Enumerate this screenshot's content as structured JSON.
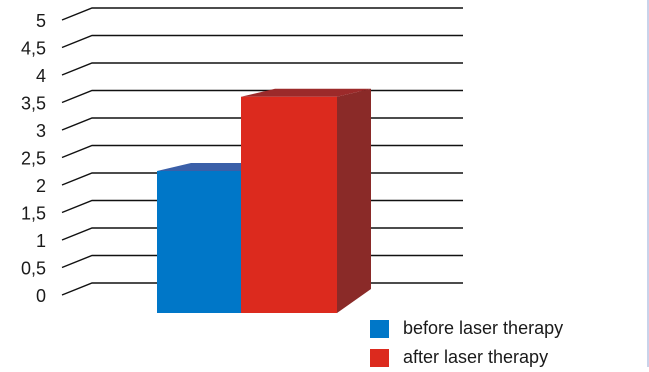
{
  "chart_data": {
    "type": "bar",
    "title": "",
    "xlabel": "",
    "ylabel": "",
    "ylim": [
      0,
      5
    ],
    "ytick_labels": [
      "0",
      "0,5",
      "1",
      "1,5",
      "2",
      "2,5",
      "3",
      "3,5",
      "4",
      "4,5",
      "5"
    ],
    "grid": true,
    "legend_position": "bottom-right",
    "series": [
      {
        "name": "before laser therapy",
        "value": 2.4,
        "color": "#0077c8",
        "top_color": "#3a5fa8"
      },
      {
        "name": "after laser therapy",
        "value": 3.75,
        "color": "#dc2a1e",
        "side_color": "#8a2a28",
        "top_color": "#9c2a2a"
      }
    ]
  }
}
